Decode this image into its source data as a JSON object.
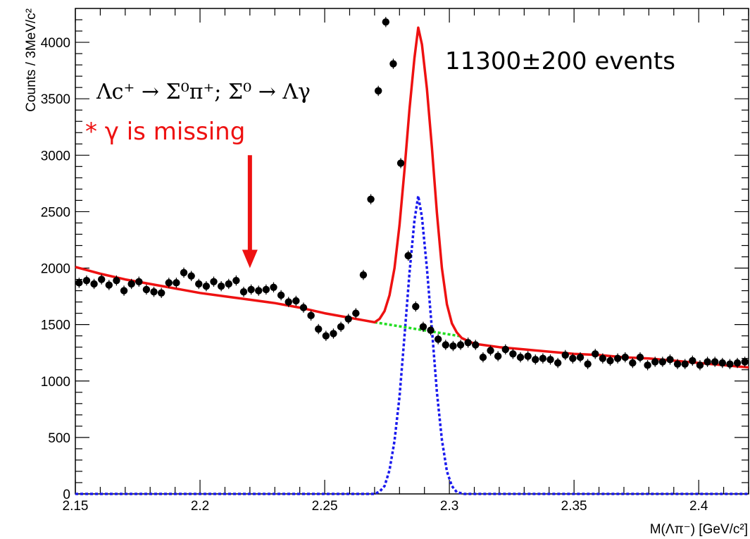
{
  "chart_data": {
    "type": "scatter",
    "title": "",
    "xlabel": "M(Λπ⁻) [GeV/c²]",
    "ylabel": "Counts / 3MeV/c²",
    "xlim": [
      2.15,
      2.42
    ],
    "ylim": [
      0,
      4300
    ],
    "x_ticks": [
      2.15,
      2.2,
      2.25,
      2.3,
      2.35,
      2.4
    ],
    "x_tick_labels": [
      "2.15",
      "2.2",
      "2.25",
      "2.3",
      "2.35",
      "2.4"
    ],
    "y_ticks": [
      0,
      500,
      1000,
      1500,
      2000,
      2500,
      3000,
      3500,
      4000
    ],
    "y_tick_labels": [
      "0",
      "500",
      "1000",
      "1500",
      "2000",
      "2500",
      "3000",
      "3500",
      "4000"
    ],
    "grid": false,
    "colors": {
      "data": "#000000",
      "total_fit": "#ee1111",
      "signal": "#1a1aee",
      "background": "#22dd22",
      "annotation": "#ee1111"
    },
    "series": [
      {
        "kind": "data-points",
        "x": [
          2.1515,
          2.1545,
          2.1575,
          2.1605,
          2.1635,
          2.1665,
          2.1695,
          2.1725,
          2.1755,
          2.1785,
          2.1815,
          2.1845,
          2.1875,
          2.1905,
          2.1935,
          2.1965,
          2.1995,
          2.2025,
          2.2055,
          2.2085,
          2.2115,
          2.2145,
          2.2175,
          2.2205,
          2.2235,
          2.2265,
          2.2295,
          2.2325,
          2.2355,
          2.2385,
          2.2415,
          2.2445,
          2.2475,
          2.2505,
          2.2535,
          2.2565,
          2.2595,
          2.2625,
          2.2655,
          2.2685,
          2.2715,
          2.2745,
          2.2775,
          2.2805,
          2.2835,
          2.2865,
          2.2895,
          2.2925,
          2.2955,
          2.2985,
          2.3015,
          2.3045,
          2.3075,
          2.3105,
          2.3135,
          2.3165,
          2.3195,
          2.3225,
          2.3255,
          2.3285,
          2.3315,
          2.3345,
          2.3375,
          2.3405,
          2.3435,
          2.3465,
          2.3495,
          2.3525,
          2.3555,
          2.3585,
          2.3615,
          2.3645,
          2.3675,
          2.3705,
          2.3735,
          2.3765,
          2.3795,
          2.3825,
          2.3855,
          2.3885,
          2.3915,
          2.3945,
          2.3975,
          2.4005,
          2.4035,
          2.4065,
          2.4095,
          2.4125,
          2.4155,
          2.4185
        ],
        "y": [
          1870,
          1890,
          1860,
          1900,
          1850,
          1890,
          1800,
          1860,
          1880,
          1810,
          1790,
          1780,
          1870,
          1870,
          1960,
          1930,
          1860,
          1840,
          1880,
          1840,
          1860,
          1890,
          1790,
          1810,
          1800,
          1810,
          1830,
          1760,
          1700,
          1710,
          1650,
          1580,
          1460,
          1400,
          1420,
          1480,
          1550,
          1600,
          1940,
          2610,
          3570,
          4180,
          3810,
          2930,
          2110,
          1660,
          1480,
          1450,
          1370,
          1320,
          1310,
          1320,
          1340,
          1320,
          1210,
          1270,
          1220,
          1280,
          1240,
          1210,
          1220,
          1190,
          1200,
          1190,
          1160,
          1230,
          1200,
          1210,
          1150,
          1240,
          1200,
          1180,
          1200,
          1210,
          1160,
          1210,
          1140,
          1170,
          1170,
          1190,
          1150,
          1150,
          1180,
          1140,
          1170,
          1170,
          1160,
          1150,
          1160,
          1170
        ],
        "yerr": 45
      },
      {
        "kind": "total-fit",
        "x": [
          2.15,
          2.16,
          2.17,
          2.18,
          2.19,
          2.2,
          2.21,
          2.22,
          2.23,
          2.24,
          2.25,
          2.26,
          2.265,
          2.27,
          2.272,
          2.274,
          2.276,
          2.278,
          2.28,
          2.282,
          2.284,
          2.286,
          2.2875,
          2.289,
          2.291,
          2.293,
          2.295,
          2.297,
          2.299,
          2.301,
          2.303,
          2.305,
          2.31,
          2.32,
          2.33,
          2.34,
          2.35,
          2.36,
          2.37,
          2.38,
          2.39,
          2.4,
          2.41,
          2.42
        ],
        "y": [
          2010,
          1950,
          1900,
          1860,
          1820,
          1780,
          1750,
          1720,
          1690,
          1650,
          1600,
          1560,
          1540,
          1520,
          1550,
          1620,
          1760,
          2000,
          2380,
          2870,
          3410,
          3860,
          4130,
          3980,
          3590,
          3070,
          2490,
          2000,
          1680,
          1510,
          1430,
          1380,
          1330,
          1300,
          1280,
          1260,
          1240,
          1230,
          1210,
          1200,
          1180,
          1160,
          1140,
          1120
        ]
      },
      {
        "kind": "signal",
        "x": [
          2.15,
          2.265,
          2.27,
          2.272,
          2.274,
          2.276,
          2.278,
          2.28,
          2.282,
          2.284,
          2.286,
          2.2875,
          2.289,
          2.291,
          2.293,
          2.295,
          2.297,
          2.299,
          2.301,
          2.303,
          2.306,
          2.42
        ],
        "y": [
          0,
          0,
          0,
          20,
          70,
          210,
          470,
          860,
          1400,
          1960,
          2420,
          2640,
          2450,
          2000,
          1460,
          900,
          480,
          200,
          70,
          15,
          0,
          0
        ]
      },
      {
        "kind": "background",
        "x": [
          2.27,
          2.305
        ],
        "y": [
          1520,
          1395
        ]
      }
    ],
    "annotations": {
      "event_count": "11300±200 events",
      "decay_chain": "Λc⁺ → Σ⁰π⁺; Σ⁰ → Λγ",
      "missing_note": "* γ is missing",
      "arrow": {
        "x": 2.22,
        "y_from": 3000,
        "y_to": 2000
      }
    }
  }
}
